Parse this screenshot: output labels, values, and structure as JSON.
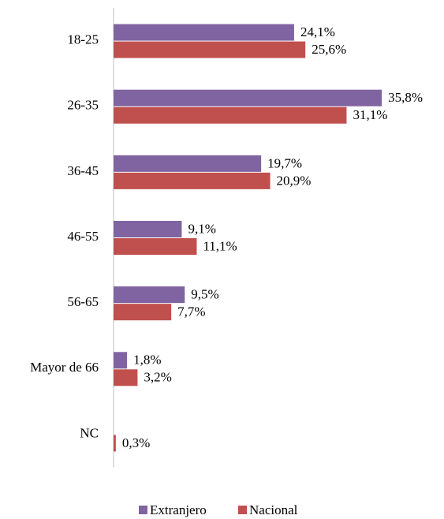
{
  "chart_data": {
    "type": "bar",
    "orientation": "horizontal",
    "categories": [
      "18-25",
      "26-35",
      "36-45",
      "46-55",
      "56-65",
      "Mayor de 66",
      "NC"
    ],
    "series": [
      {
        "name": "Extranjero",
        "color": "#8064a2",
        "values": [
          24.1,
          35.8,
          19.7,
          9.1,
          9.5,
          1.8,
          null
        ],
        "value_labels": [
          "24,1%",
          "35,8%",
          "19,7%",
          "9,1%",
          "9,5%",
          "1,8%",
          null
        ]
      },
      {
        "name": "Nacional",
        "color": "#c0504d",
        "values": [
          25.6,
          31.1,
          20.9,
          11.1,
          7.7,
          3.2,
          0.3
        ],
        "value_labels": [
          "25,6%",
          "31,1%",
          "20,9%",
          "11,1%",
          "7,7%",
          "3,2%",
          "0,3%"
        ]
      }
    ],
    "xlim": [
      0,
      40
    ],
    "legend": "bottom"
  }
}
